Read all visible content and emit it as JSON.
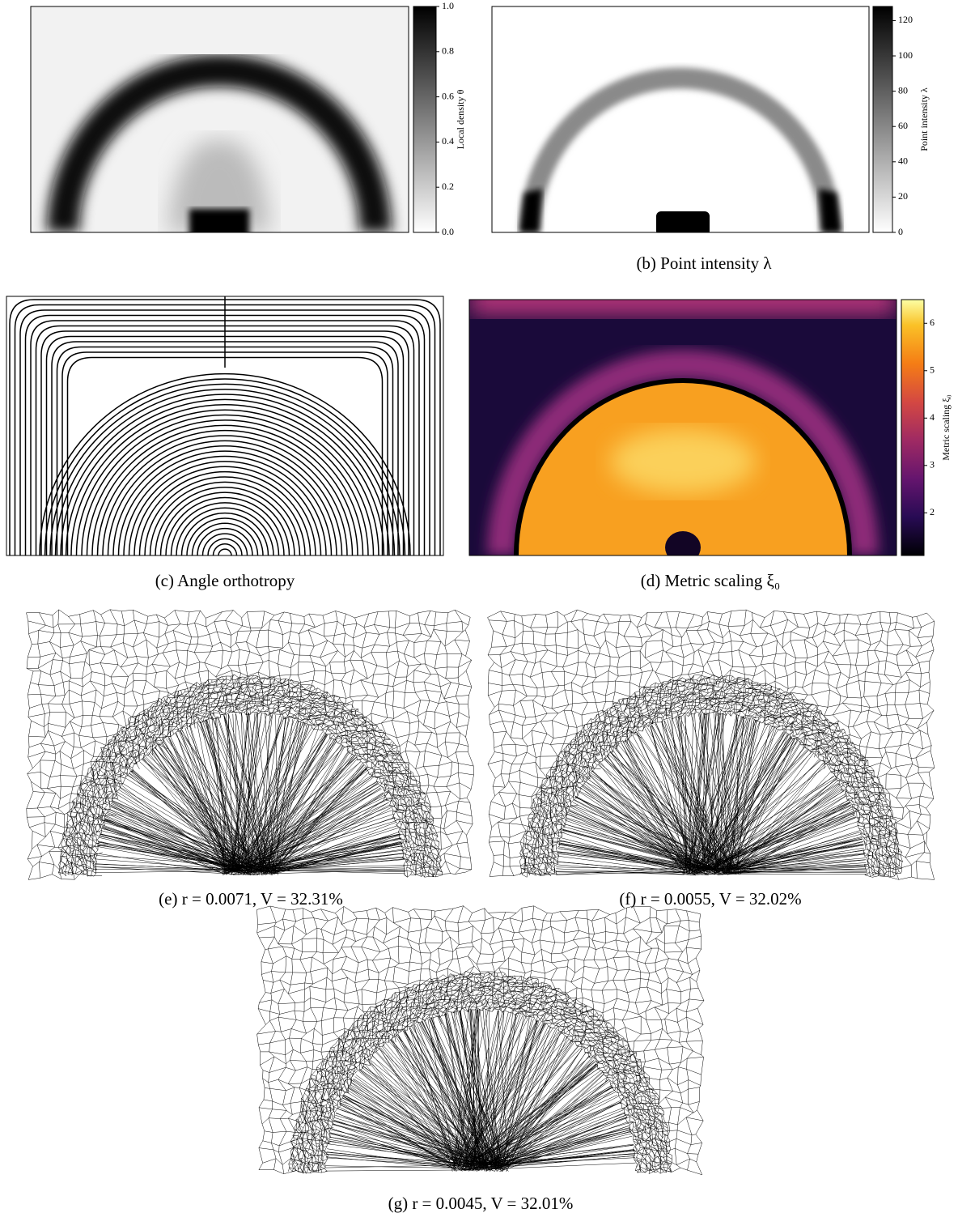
{
  "panel_a": {
    "colorbar": {
      "label": "Local density θ",
      "range": [
        0,
        1
      ],
      "ticks": [
        {
          "value": 0,
          "label": "0.0"
        },
        {
          "value": 0.2,
          "label": "0.2"
        },
        {
          "value": 0.4,
          "label": "0.4"
        },
        {
          "value": 0.6,
          "label": "0.6"
        },
        {
          "value": 0.8,
          "label": "0.8"
        },
        {
          "value": 1,
          "label": "1.0"
        }
      ]
    }
  },
  "panel_b": {
    "caption": "(b) Point intensity λ",
    "colorbar": {
      "label": "Point intensity λ",
      "range": [
        0,
        128
      ],
      "ticks": [
        0,
        20,
        40,
        60,
        80,
        100,
        120
      ]
    }
  },
  "panel_c": {
    "caption": "(c) Angle orthotropy"
  },
  "panel_d": {
    "caption": "(d) Metric scaling ξ₀",
    "colorbar": {
      "label": "Metric scaling ξ₀",
      "range": [
        1.1,
        6.5
      ],
      "ticks": [
        2,
        3,
        4,
        5,
        6
      ]
    }
  },
  "panel_e": {
    "caption": "(e) r = 0.0071, V = 32.31%"
  },
  "panel_f": {
    "caption": "(f) r = 0.0055, V = 32.02%"
  },
  "panel_g": {
    "caption": "(g) r = 0.0045, V = 32.01%"
  }
}
